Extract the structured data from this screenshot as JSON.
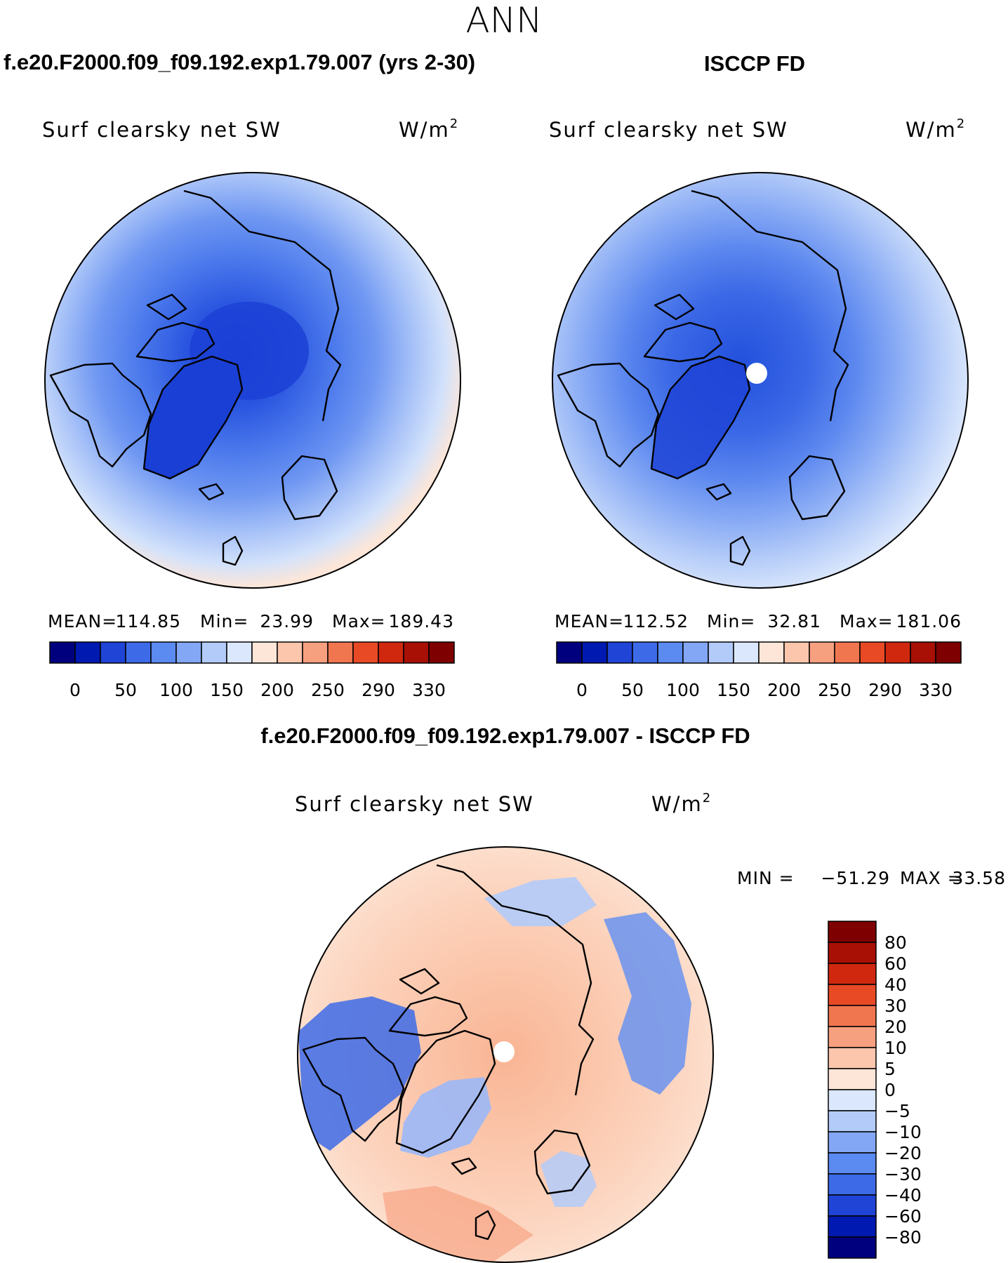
{
  "figure": {
    "season": "ANN",
    "left_title": "f.e20.F2000.f09_f09.192.exp1.79.007 (yrs 2-30)",
    "right_title": "ISCCP FD",
    "diff_title": "f.e20.F2000.f09_f09.192.exp1.79.007 - ISCCP FD"
  },
  "colors": {
    "abs_scale": [
      "#00007f",
      "#0019b0",
      "#1f44d6",
      "#3d6be8",
      "#5b8af0",
      "#84a7f5",
      "#b3cbf9",
      "#dbe7fc",
      "#fde6d8",
      "#fcc6ad",
      "#f7a07f",
      "#f07650",
      "#e84a26",
      "#d0280f",
      "#a81005",
      "#7e0000"
    ],
    "diff_scale": [
      "#00007f",
      "#0019b0",
      "#1f44d6",
      "#3d6be8",
      "#5b8af0",
      "#84a7f5",
      "#b3cbf9",
      "#dbe7fc",
      "#fde6d8",
      "#fcc6ad",
      "#f7a07f",
      "#f07650",
      "#e84a26",
      "#d0280f",
      "#a81005",
      "#7e0000"
    ]
  },
  "chart_data": [
    {
      "type": "heatmap",
      "title": "Surf clearsky net SW",
      "units_base": "W/m",
      "units_exp": "2",
      "projection": "north polar stereographic",
      "stats": {
        "mean_label": "MEAN=",
        "mean": "114.85",
        "min_label": "Min=",
        "min": "23.99",
        "max_label": "Max=",
        "max": "189.43"
      },
      "colorbar_ticks": [
        "0",
        "50",
        "100",
        "150",
        "200",
        "250",
        "290",
        "330"
      ]
    },
    {
      "type": "heatmap",
      "title": "Surf clearsky net SW",
      "units_base": "W/m",
      "units_exp": "2",
      "projection": "north polar stereographic",
      "stats": {
        "mean_label": "MEAN=",
        "mean": "112.52",
        "min_label": "Min=",
        "min": "32.81",
        "max_label": "Max=",
        "max": "181.06"
      },
      "colorbar_ticks": [
        "0",
        "50",
        "100",
        "150",
        "200",
        "250",
        "290",
        "330"
      ]
    },
    {
      "type": "heatmap",
      "title": "Surf clearsky net SW",
      "units_base": "W/m",
      "units_exp": "2",
      "projection": "north polar stereographic",
      "stats": {
        "min_label": "MIN =",
        "min": "−51.29",
        "max_label": "MAX =",
        "max": "33.58"
      },
      "colorbar_ticks": [
        "80",
        "60",
        "40",
        "30",
        "20",
        "10",
        "5",
        "0",
        "−5",
        "−10",
        "−20",
        "−30",
        "−40",
        "−60",
        "−80"
      ]
    }
  ]
}
